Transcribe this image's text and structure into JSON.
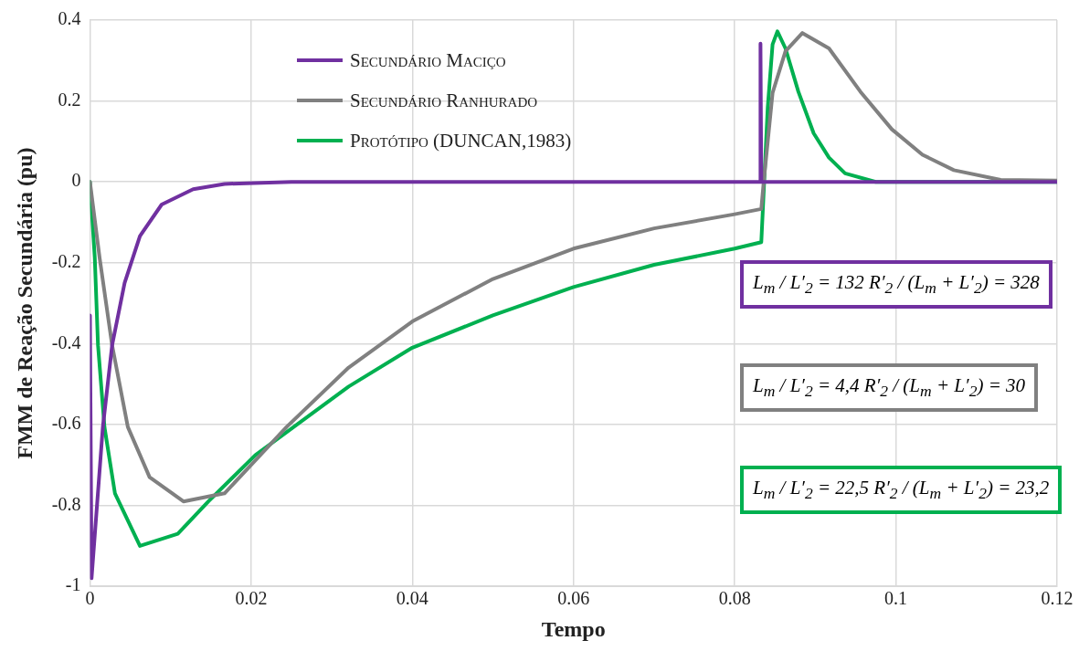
{
  "chart_data": {
    "type": "line",
    "xlabel": "Tempo",
    "ylabel": "FMM de Reação Secundária (pu)",
    "xlim": [
      0,
      0.12
    ],
    "xticks": [
      0,
      0.02,
      0.04,
      0.06,
      0.08,
      {
        "value": 0.1,
        "label": "0.1"
      },
      0.12
    ],
    "ylim": [
      -1,
      0.4
    ],
    "yticks": [
      {
        "value": -1,
        "label": "-1"
      },
      -0.8,
      -0.6,
      -0.4,
      -0.2,
      0,
      0.2,
      0.4
    ],
    "grid": true,
    "legend": "top left",
    "marker": "none",
    "line_style": "solid",
    "series": [
      {
        "name": "Secundário Maciço",
        "color": "#7030a0",
        "x": [
          0,
          0,
          0.0002,
          0.0016,
          0.00275,
          0.0043,
          0.0062,
          0.0089,
          0.0128,
          0.0167,
          0.025,
          0.0832,
          0.0832,
          0.0833,
          0.12
        ],
        "values": [
          -0.33,
          -0.33,
          -0.98,
          -0.606,
          -0.404,
          -0.25,
          -0.134,
          -0.056,
          -0.018,
          -0.005,
          0,
          0,
          0.342,
          0,
          0
        ]
      },
      {
        "name": "Secundário Ranhurado",
        "color": "#808080",
        "x": [
          0,
          0.0012,
          0.00275,
          0.0047,
          0.0074,
          0.0116,
          0.0167,
          0.0244,
          0.0321,
          0.04,
          0.05,
          0.06,
          0.07,
          0.08,
          0.0833,
          0.0836,
          0.0847,
          0.0863,
          0.0884,
          0.0917,
          0.0956,
          0.0995,
          0.1033,
          0.1072,
          0.113,
          0.12
        ],
        "values": [
          0,
          -0.188,
          -0.404,
          -0.606,
          -0.73,
          -0.79,
          -0.77,
          -0.606,
          -0.459,
          -0.345,
          -0.24,
          -0.165,
          -0.115,
          -0.08,
          -0.067,
          0,
          0.22,
          0.323,
          0.368,
          0.33,
          0.223,
          0.13,
          0.067,
          0.029,
          0.005,
          0.003
        ]
      },
      {
        "name": "Protótipo (DUNCAN,1983)",
        "color": "#00b050",
        "x": [
          0,
          0.0006,
          0.001,
          0.0018,
          0.0031,
          0.0062,
          0.0109,
          0.0147,
          0.0205,
          0.0321,
          0.04,
          0.05,
          0.06,
          0.07,
          0.08,
          0.0833,
          0.0841,
          0.0847,
          0.0853,
          0.0863,
          0.0879,
          0.0898,
          0.0917,
          0.0937,
          0.0975,
          0.12
        ],
        "values": [
          0,
          -0.188,
          -0.404,
          -0.606,
          -0.77,
          -0.9,
          -0.87,
          -0.79,
          -0.676,
          -0.506,
          -0.41,
          -0.33,
          -0.26,
          -0.205,
          -0.165,
          -0.149,
          0.184,
          0.34,
          0.372,
          0.33,
          0.223,
          0.12,
          0.06,
          0.021,
          0,
          0
        ]
      }
    ],
    "annotations": [
      "L$_{m}$ / L′$_{2}$ = 132     R′$_{2}$ / (L$_{m}$ + L′$_{2}$) = 328",
      "L$_{m}$ / L′$_{2}$ = 4,4     R′$_{2}$ / (L$_{m}$ + L′$_{2}$) = 30",
      "L$_{m}$ / L′$_{2}$ = 22,5     R′$_{2}$ / (L$_{m}$ + L′$_{2}$) = 23,2"
    ]
  }
}
